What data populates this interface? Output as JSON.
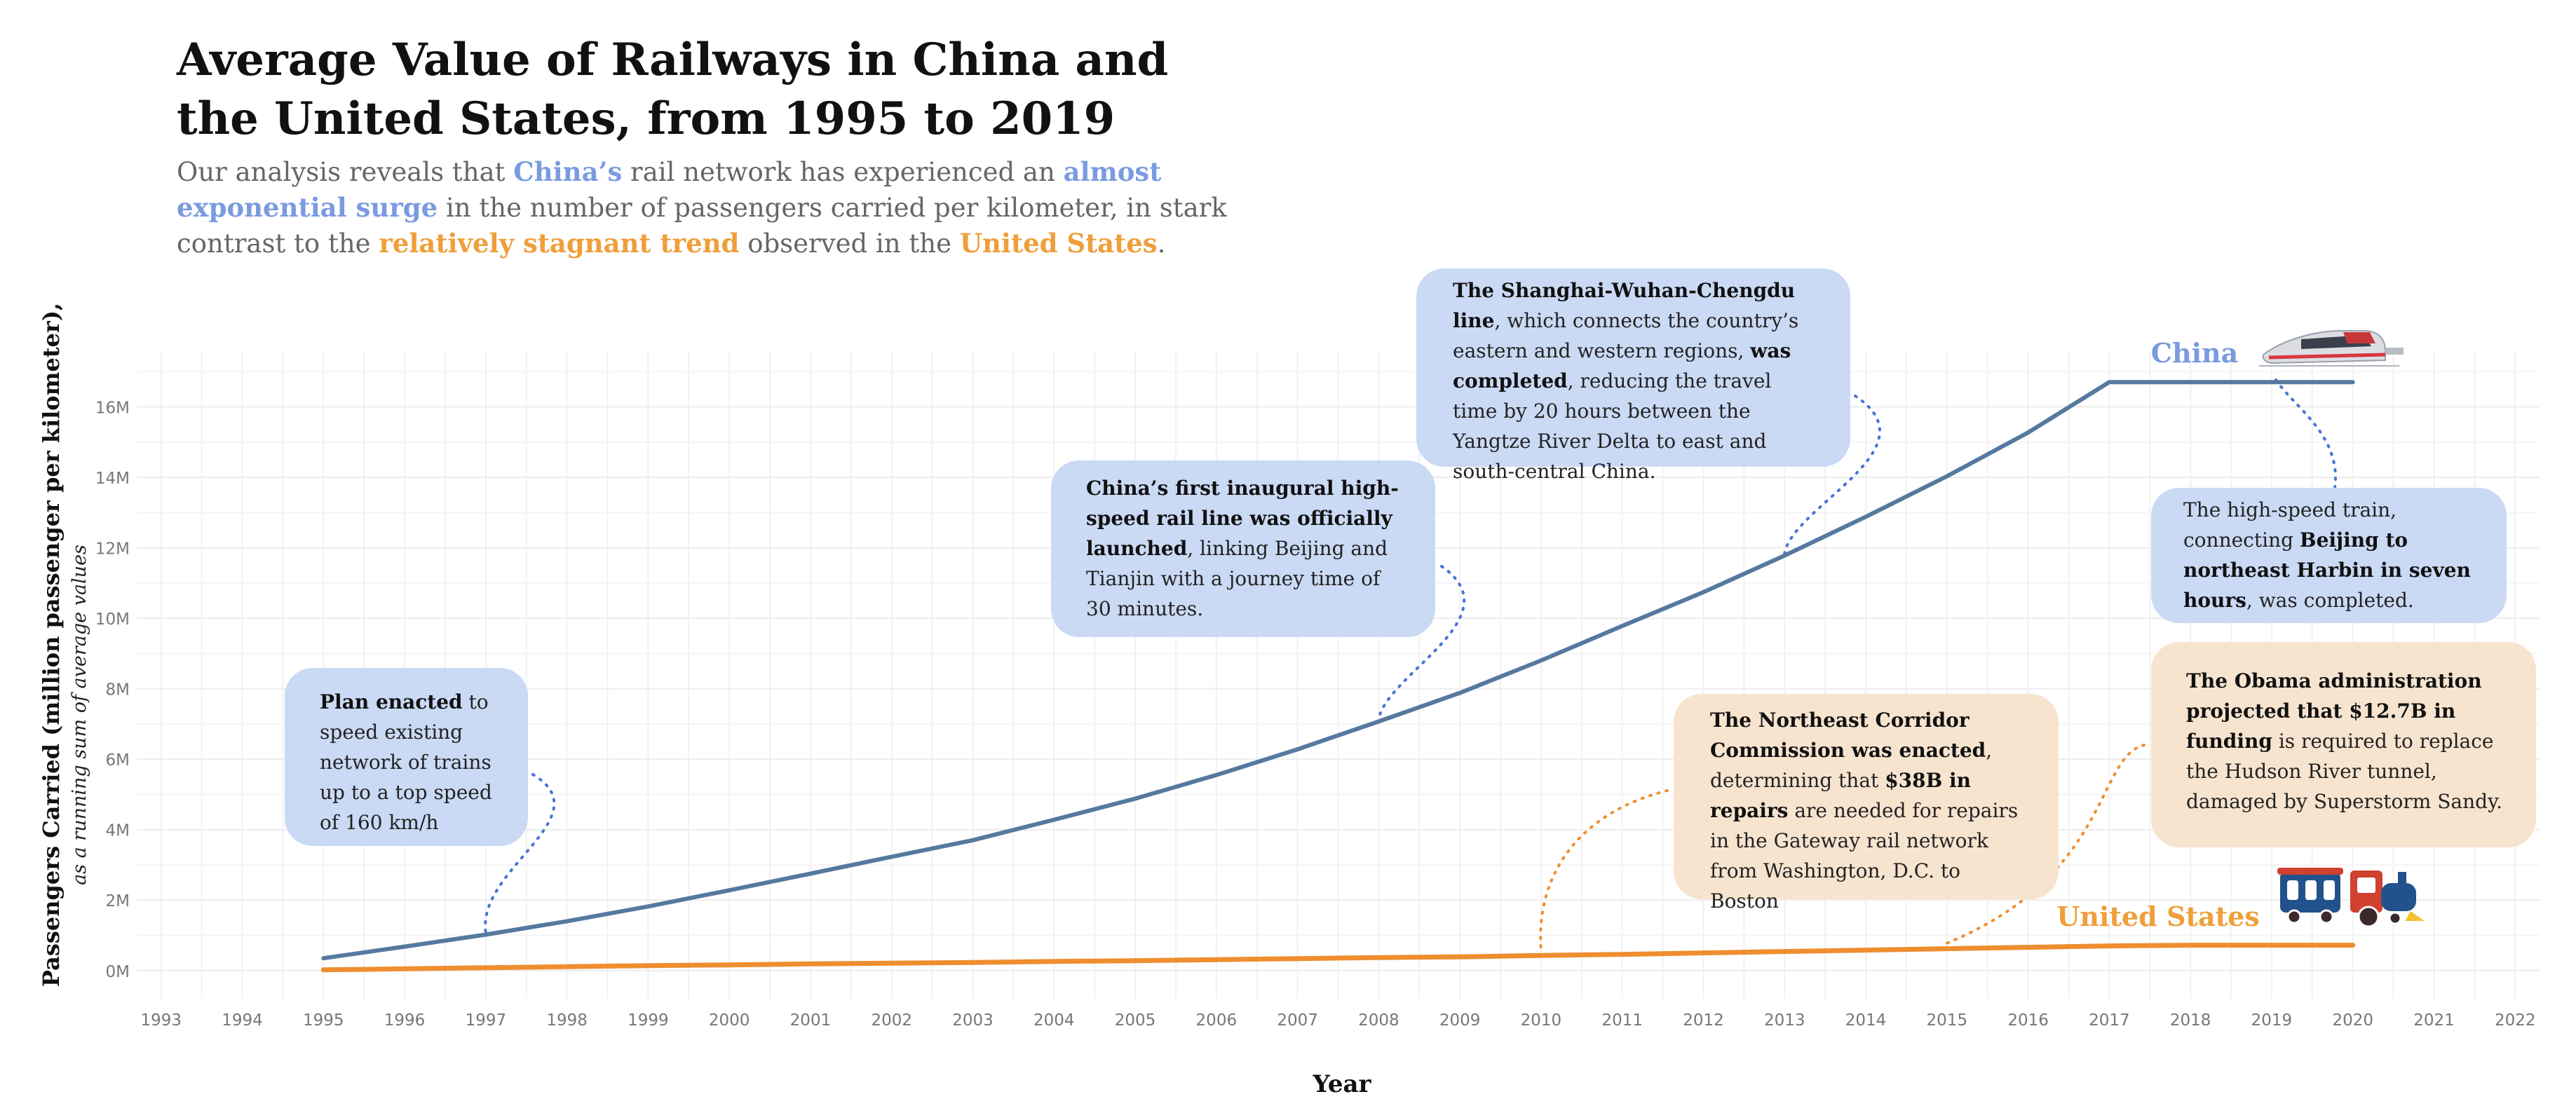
{
  "title": "Average Value of Railways in China and the United States, from 1995 to 2019",
  "subtitle": {
    "p1": "Our analysis reveals that ",
    "china": "China’s",
    "p2": " rail network has experienced an ",
    "surge": "almost exponential surge",
    "p3": " in the number of passengers carried per kilometer, in stark contrast to the ",
    "stagnant": "relatively stagnant trend",
    "p4": " observed in the ",
    "us": "United States",
    "p5": "."
  },
  "colors": {
    "china": "#55799f",
    "us": "#ef8e30",
    "china_note": "#cad9f4",
    "us_note": "#f7e4cf",
    "china_label": "#7a9be0",
    "us_label": "#ef9f3a"
  },
  "chart_data": {
    "type": "line",
    "xlabel": "Year",
    "ylabel": "Passengers Carried (million passenger per kilometer),",
    "ylabel_sub": "as a running sum of average values",
    "x_ticks": [
      "1993",
      "1994",
      "1995",
      "1996",
      "1997",
      "1998",
      "1999",
      "2000",
      "2001",
      "2002",
      "2003",
      "2004",
      "2005",
      "2006",
      "2007",
      "2008",
      "2009",
      "2010",
      "2011",
      "2012",
      "2013",
      "2014",
      "2015",
      "2016",
      "2017",
      "2018",
      "2019",
      "2020",
      "2021",
      "2022"
    ],
    "y_ticks": [
      "0M",
      "2M",
      "4M",
      "6M",
      "8M",
      "10M",
      "12M",
      "14M",
      "16M"
    ],
    "xlim": [
      1992.7,
      2022.3
    ],
    "ylim": [
      -0.8,
      17.6
    ],
    "grid": true,
    "series": [
      {
        "name": "China",
        "icon": "high-speed-train-icon",
        "points": [
          [
            1995,
            0.35
          ],
          [
            1996,
            0.68
          ],
          [
            1997,
            1.02
          ],
          [
            1998,
            1.4
          ],
          [
            1999,
            1.82
          ],
          [
            2000,
            2.28
          ],
          [
            2001,
            2.75
          ],
          [
            2002,
            3.23
          ],
          [
            2003,
            3.7
          ],
          [
            2004,
            4.28
          ],
          [
            2005,
            4.88
          ],
          [
            2006,
            5.55
          ],
          [
            2007,
            6.28
          ],
          [
            2008,
            7.07
          ],
          [
            2009,
            7.88
          ],
          [
            2010,
            8.8
          ],
          [
            2011,
            9.78
          ],
          [
            2012,
            10.74
          ],
          [
            2013,
            11.78
          ],
          [
            2014,
            12.88
          ],
          [
            2015,
            14.03
          ],
          [
            2016,
            15.27
          ],
          [
            2017,
            16.7
          ],
          [
            2018,
            16.7
          ],
          [
            2019,
            16.7
          ],
          [
            2020,
            16.7
          ]
        ]
      },
      {
        "name": "United States",
        "icon": "steam-locomotive-icon",
        "points": [
          [
            1995,
            0.02
          ],
          [
            1996,
            0.05
          ],
          [
            1997,
            0.08
          ],
          [
            1998,
            0.11
          ],
          [
            1999,
            0.14
          ],
          [
            2000,
            0.16
          ],
          [
            2001,
            0.19
          ],
          [
            2002,
            0.21
          ],
          [
            2003,
            0.23
          ],
          [
            2004,
            0.26
          ],
          [
            2005,
            0.28
          ],
          [
            2006,
            0.31
          ],
          [
            2007,
            0.34
          ],
          [
            2008,
            0.37
          ],
          [
            2009,
            0.39
          ],
          [
            2010,
            0.43
          ],
          [
            2011,
            0.46
          ],
          [
            2012,
            0.5
          ],
          [
            2013,
            0.54
          ],
          [
            2014,
            0.58
          ],
          [
            2015,
            0.62
          ],
          [
            2016,
            0.66
          ],
          [
            2017,
            0.7
          ],
          [
            2018,
            0.72
          ],
          [
            2019,
            0.72
          ],
          [
            2020,
            0.72
          ]
        ]
      }
    ],
    "annotations": [
      {
        "id": "plan",
        "series": "China",
        "year": 1997,
        "bold": "Plan enacted",
        "text": " to speed existing network of trains up to a top speed of 160 km/h"
      },
      {
        "id": "beijing-tianjin",
        "series": "China",
        "year": 2008,
        "bold": "China’s first inaugural high-speed rail line was officially launched",
        "text": ", linking Beijing and Tianjin with a journey time of 30 minutes."
      },
      {
        "id": "shanghai",
        "series": "China",
        "year": 2013,
        "bold": "The Shanghai-Wuhan-Chengdu line",
        "text": ", which connects the country’s eastern and western regions, ",
        "bold2": "was completed",
        "text2": ", reducing the travel time by 20 hours between the Yangtze River Delta to east and south-central China."
      },
      {
        "id": "harbin",
        "series": "China",
        "year": 2020,
        "text": "The high-speed train, connecting ",
        "bold": "Beijing to northeast Harbin in seven hours",
        "text2": ", was completed."
      },
      {
        "id": "corridor",
        "series": "United States",
        "year": 2010,
        "bold": "The Northeast Corridor Commission was enacted",
        "text": ", determining that ",
        "bold2": "$38B in repairs",
        "text2": " are needed for repairs in the Gateway rail network from Washington, D.C. to Boston"
      },
      {
        "id": "obama",
        "series": "United States",
        "year": 2015,
        "bold": "The Obama administration projected that $12.7B in funding",
        "text": " is required to replace the Hudson River tunnel, damaged by Superstorm Sandy."
      }
    ]
  }
}
